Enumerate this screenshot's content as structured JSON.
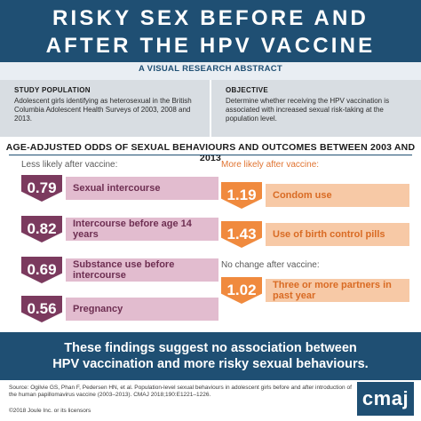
{
  "header": {
    "title_line1": "RISKY SEX BEFORE AND",
    "title_line2": "AFTER THE HPV VACCINE",
    "subtitle": "A VISUAL RESEARCH ABSTRACT"
  },
  "study_population": {
    "label": "STUDY POPULATION",
    "text": "Adolescent girls identifying as heterosexual in the British Columbia Adolescent Health Surveys of 2003, 2008 and 2013."
  },
  "objective": {
    "label": "OBJECTIVE",
    "text": "Determine whether receiving the HPV vaccination is associated with increased sexual risk-taking at the population level."
  },
  "section_title": "AGE-ADJUSTED ODDS OF SEXUAL BEHAVIOURS AND OUTCOMES BETWEEN 2003 AND 2013",
  "less_likely": {
    "label": "Less likely after vaccine:",
    "items": [
      {
        "value": "0.79",
        "label": "Sexual intercourse"
      },
      {
        "value": "0.82",
        "label": "Intercourse before age 14 years"
      },
      {
        "value": "0.69",
        "label": "Substance use before intercourse"
      },
      {
        "value": "0.56",
        "label": "Pregnancy"
      }
    ]
  },
  "more_likely": {
    "label": "More likely after vaccine:",
    "items": [
      {
        "value": "1.19",
        "label": "Condom use"
      },
      {
        "value": "1.43",
        "label": "Use of birth control pills"
      }
    ]
  },
  "no_change": {
    "label": "No change after vaccine:",
    "items": [
      {
        "value": "1.02",
        "label": "Three or more partners in past year"
      }
    ]
  },
  "conclusion": {
    "line1": "These findings suggest no association between",
    "line2": "HPV vaccination and more risky sexual behaviours."
  },
  "footer": {
    "source": "Source: Ogilvie GS, Phan F, Pedersen HN, et al. Population-level sexual behaviours in adolescent girls before and after introduction of the human papillomavirus vaccine (2003–2013). CMAJ 2018;190:E1221–1226.",
    "copyright": "©2018 Joule Inc. or its licensors",
    "logo": "cmaj"
  },
  "colors": {
    "navy": "#1f4f73",
    "purple": "#7b3a5e",
    "pink": "#e2bccf",
    "orange": "#f08a3e",
    "peach": "#f7c9a6",
    "grey_panel": "#d8dde2"
  }
}
